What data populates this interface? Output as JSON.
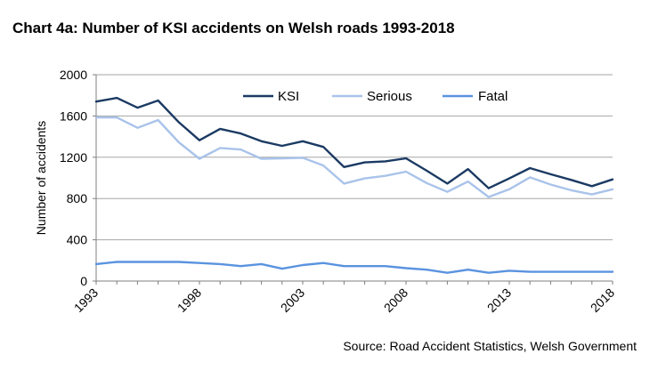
{
  "chart_data": {
    "type": "line",
    "title": "Chart 4a: Number of KSI accidents on Welsh roads 1993-2018",
    "xlabel": "",
    "ylabel": "Number of accidents",
    "ylim": [
      0,
      2000
    ],
    "yticks": [
      0,
      400,
      800,
      1200,
      1600,
      2000
    ],
    "xlim": [
      1993,
      2018
    ],
    "xticks": [
      1993,
      1998,
      2003,
      2008,
      2013,
      2018
    ],
    "grid": "horizontal",
    "legend": "top",
    "x": [
      1993,
      1994,
      1995,
      1996,
      1997,
      1998,
      1999,
      2000,
      2001,
      2002,
      2003,
      2004,
      2005,
      2006,
      2007,
      2008,
      2009,
      2010,
      2011,
      2012,
      2013,
      2014,
      2015,
      2016,
      2017,
      2018
    ],
    "series": [
      {
        "name": "KSI",
        "color": "#1b3a63",
        "values": [
          1740,
          1775,
          1680,
          1750,
          1540,
          1365,
          1475,
          1430,
          1355,
          1310,
          1355,
          1300,
          1105,
          1150,
          1160,
          1190,
          1070,
          945,
          1085,
          900,
          995,
          1095,
          1035,
          980,
          920,
          985
        ]
      },
      {
        "name": "Serious",
        "color": "#a9c3ea",
        "values": [
          1585,
          1585,
          1485,
          1560,
          1345,
          1185,
          1290,
          1275,
          1185,
          1190,
          1195,
          1120,
          945,
          995,
          1020,
          1060,
          950,
          865,
          965,
          815,
          890,
          1005,
          935,
          880,
          840,
          890
        ]
      },
      {
        "name": "Fatal",
        "color": "#5a93df",
        "values": [
          165,
          185,
          185,
          185,
          185,
          175,
          165,
          145,
          165,
          120,
          155,
          175,
          145,
          145,
          145,
          125,
          110,
          80,
          110,
          80,
          100,
          90,
          90,
          90,
          90,
          90
        ]
      }
    ]
  },
  "source": "Source: Road Accident Statistics, Welsh Government"
}
